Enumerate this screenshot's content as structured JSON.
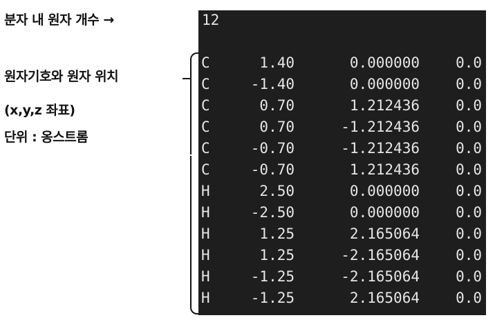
{
  "labels": {
    "atom_count": "분자 내 원자 개수 →",
    "symbol_position": "원자기호와 원자 위치",
    "coords": "(x,y,z 좌표)",
    "unit": "단위 : 옹스트롬"
  },
  "terminal": {
    "count": "12",
    "rows": [
      {
        "symbol": "C",
        "x": "1.40",
        "y": "0.000000",
        "z": "0.0"
      },
      {
        "symbol": "C",
        "x": "-1.40",
        "y": "0.000000",
        "z": "0.0"
      },
      {
        "symbol": "C",
        "x": "0.70",
        "y": "1.212436",
        "z": "0.0"
      },
      {
        "symbol": "C",
        "x": "0.70",
        "y": "-1.212436",
        "z": "0.0"
      },
      {
        "symbol": "C",
        "x": "-0.70",
        "y": "-1.212436",
        "z": "0.0"
      },
      {
        "symbol": "C",
        "x": "-0.70",
        "y": "1.212436",
        "z": "0.0"
      },
      {
        "symbol": "H",
        "x": "2.50",
        "y": "0.000000",
        "z": "0.0"
      },
      {
        "symbol": "H",
        "x": "-2.50",
        "y": "0.000000",
        "z": "0.0"
      },
      {
        "symbol": "H",
        "x": "1.25",
        "y": "2.165064",
        "z": "0.0"
      },
      {
        "symbol": "H",
        "x": "1.25",
        "y": "-2.165064",
        "z": "0.0"
      },
      {
        "symbol": "H",
        "x": "-1.25",
        "y": "-2.165064",
        "z": "0.0"
      },
      {
        "symbol": "H",
        "x": "-1.25",
        "y": "2.165064",
        "z": "0.0"
      }
    ]
  },
  "colors": {
    "terminal_bg": "#1e1e1e",
    "terminal_text": "#e6e6e6"
  }
}
